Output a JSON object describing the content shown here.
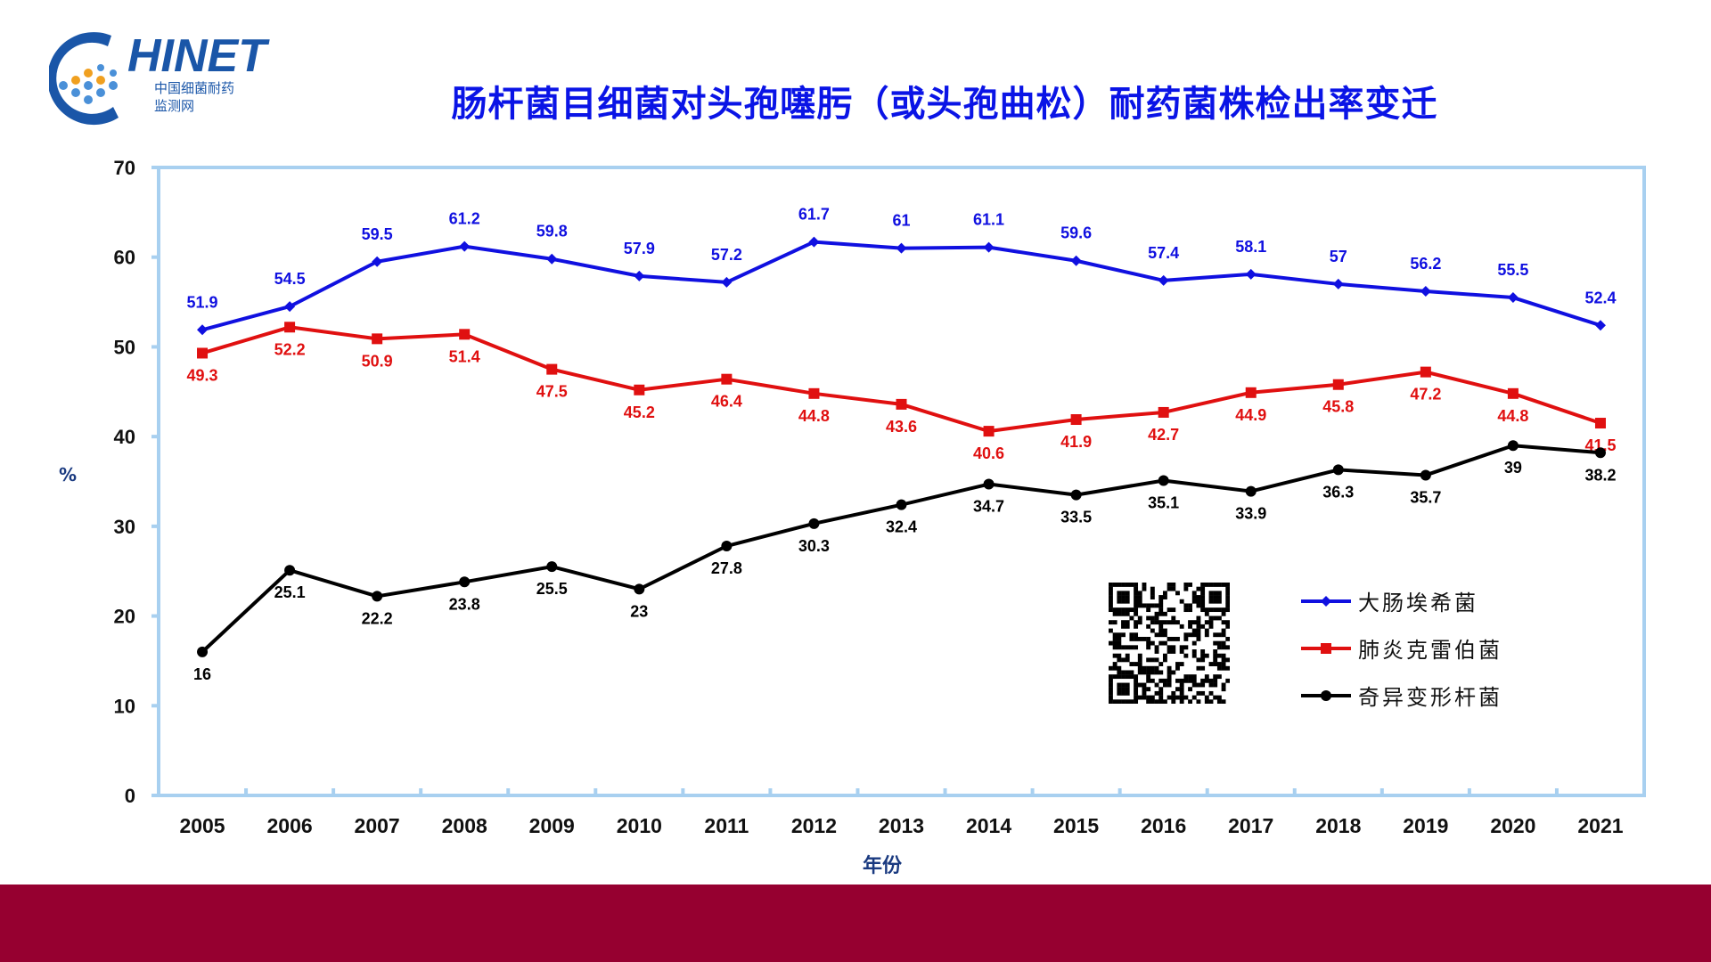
{
  "logo": {
    "text": "HINET",
    "subtitle_cn": "中国细菌耐药",
    "subtitle_cn2": "监测网"
  },
  "chart_data": {
    "type": "line",
    "title": "肠杆菌目细菌对头孢噻肟（或头孢曲松）耐药菌株检出率变迁",
    "xlabel": "年份",
    "ylabel": "%",
    "ylim": [
      0,
      70
    ],
    "yticks": [
      0,
      10,
      20,
      30,
      40,
      50,
      60,
      70
    ],
    "x": [
      "2005",
      "2006",
      "2007",
      "2008",
      "2009",
      "2010",
      "2011",
      "2012",
      "2013",
      "2014",
      "2015",
      "2016",
      "2017",
      "2018",
      "2019",
      "2020",
      "2021"
    ],
    "series": [
      {
        "name": "大肠埃希菌",
        "color": "#1010e0",
        "marker": "diamond",
        "label_pos": "above",
        "values": [
          51.9,
          54.5,
          59.5,
          61.2,
          59.8,
          57.9,
          57.2,
          61.7,
          61,
          61.1,
          59.6,
          57.4,
          58.1,
          57,
          56.2,
          55.5,
          52.4
        ]
      },
      {
        "name": "肺炎克雷伯菌",
        "color": "#e01010",
        "marker": "square",
        "label_pos": "below",
        "values": [
          49.3,
          52.2,
          50.9,
          51.4,
          47.5,
          45.2,
          46.4,
          44.8,
          43.6,
          40.6,
          41.9,
          42.7,
          44.9,
          45.8,
          47.2,
          44.8,
          41.5
        ]
      },
      {
        "name": "奇异变形杆菌",
        "color": "#000000",
        "marker": "circle",
        "label_pos": "below",
        "values": [
          16,
          25.1,
          22.2,
          23.8,
          25.5,
          23,
          27.8,
          30.3,
          32.4,
          34.7,
          33.5,
          35.1,
          33.9,
          36.3,
          35.7,
          39,
          38.2
        ]
      }
    ],
    "grid": false,
    "legend": "bottom-right",
    "frame_color": "#a8d0f0"
  }
}
